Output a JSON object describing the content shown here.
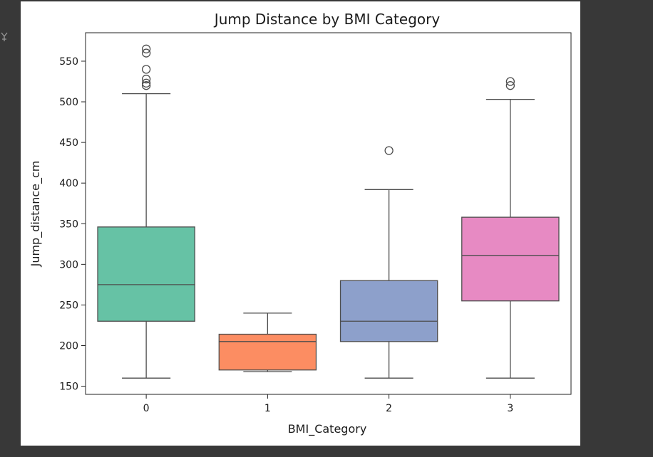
{
  "page": {
    "background": "#383838",
    "card_background": "#ffffff",
    "side_icon": "plug-icon"
  },
  "chart_data": {
    "type": "box",
    "title": "Jump Distance by BMI Category",
    "xlabel": "BMI_Category",
    "ylabel": "Jump_distance_cm",
    "ylim": [
      140,
      585
    ],
    "yticks": [
      150,
      200,
      250,
      300,
      350,
      400,
      450,
      500,
      550
    ],
    "grid": false,
    "categories": [
      "0",
      "1",
      "2",
      "3"
    ],
    "boxes": [
      {
        "category": "0",
        "color": "#66c2a5",
        "whisker_low": 160,
        "q1": 230,
        "median": 275,
        "q3": 346,
        "whisker_high": 510,
        "outliers": [
          520,
          523,
          528,
          540,
          560,
          565
        ]
      },
      {
        "category": "1",
        "color": "#fc8d62",
        "whisker_low": 168,
        "q1": 170,
        "median": 205,
        "q3": 214,
        "whisker_high": 240,
        "outliers": []
      },
      {
        "category": "2",
        "color": "#8da0cb",
        "whisker_low": 160,
        "q1": 205,
        "median": 230,
        "q3": 280,
        "whisker_high": 392,
        "outliers": [
          440
        ]
      },
      {
        "category": "3",
        "color": "#e78ac3",
        "whisker_low": 160,
        "q1": 255,
        "median": 311,
        "q3": 358,
        "whisker_high": 503,
        "outliers": [
          520,
          525
        ]
      }
    ]
  }
}
